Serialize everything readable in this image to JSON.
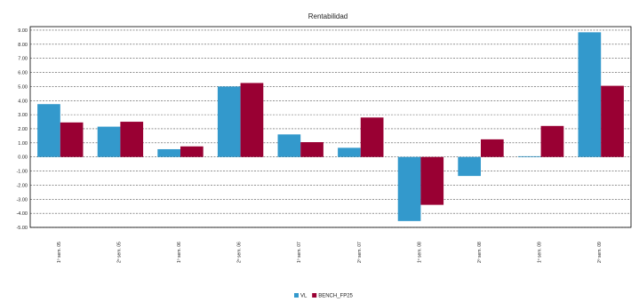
{
  "chart_data": {
    "type": "bar",
    "title": "Rentabilidad",
    "xlabel": "",
    "ylabel": "",
    "categories": [
      "1º sem. 05",
      "2º sem. 05",
      "1º sem. 06",
      "2º sem. 06",
      "1º sem. 07",
      "2º sem. 07",
      "1º sem. 08",
      "2º sem. 08",
      "1º sem. 09",
      "2º sem. 09"
    ],
    "series": [
      {
        "name": "VL",
        "color": "#3399cc",
        "values": [
          3.75,
          2.15,
          0.55,
          5.0,
          1.6,
          0.65,
          -4.55,
          -1.35,
          0.05,
          8.85
        ]
      },
      {
        "name": "BENCH_FP25",
        "color": "#990033",
        "values": [
          2.45,
          2.5,
          0.75,
          5.25,
          1.05,
          2.8,
          -3.4,
          1.25,
          2.2,
          5.05
        ]
      }
    ],
    "ylim": [
      -5,
      9.25
    ],
    "yticks": [
      "9.00",
      "8.00",
      "7.00",
      "6.00",
      "5.00",
      "4.00",
      "3.00",
      "2.00",
      "1.00",
      "0.00",
      "-1.00",
      "-2.00",
      "-3.00",
      "-4.00",
      "-5.00"
    ],
    "grid": true,
    "legend": {
      "placement": "bottom-center"
    }
  }
}
